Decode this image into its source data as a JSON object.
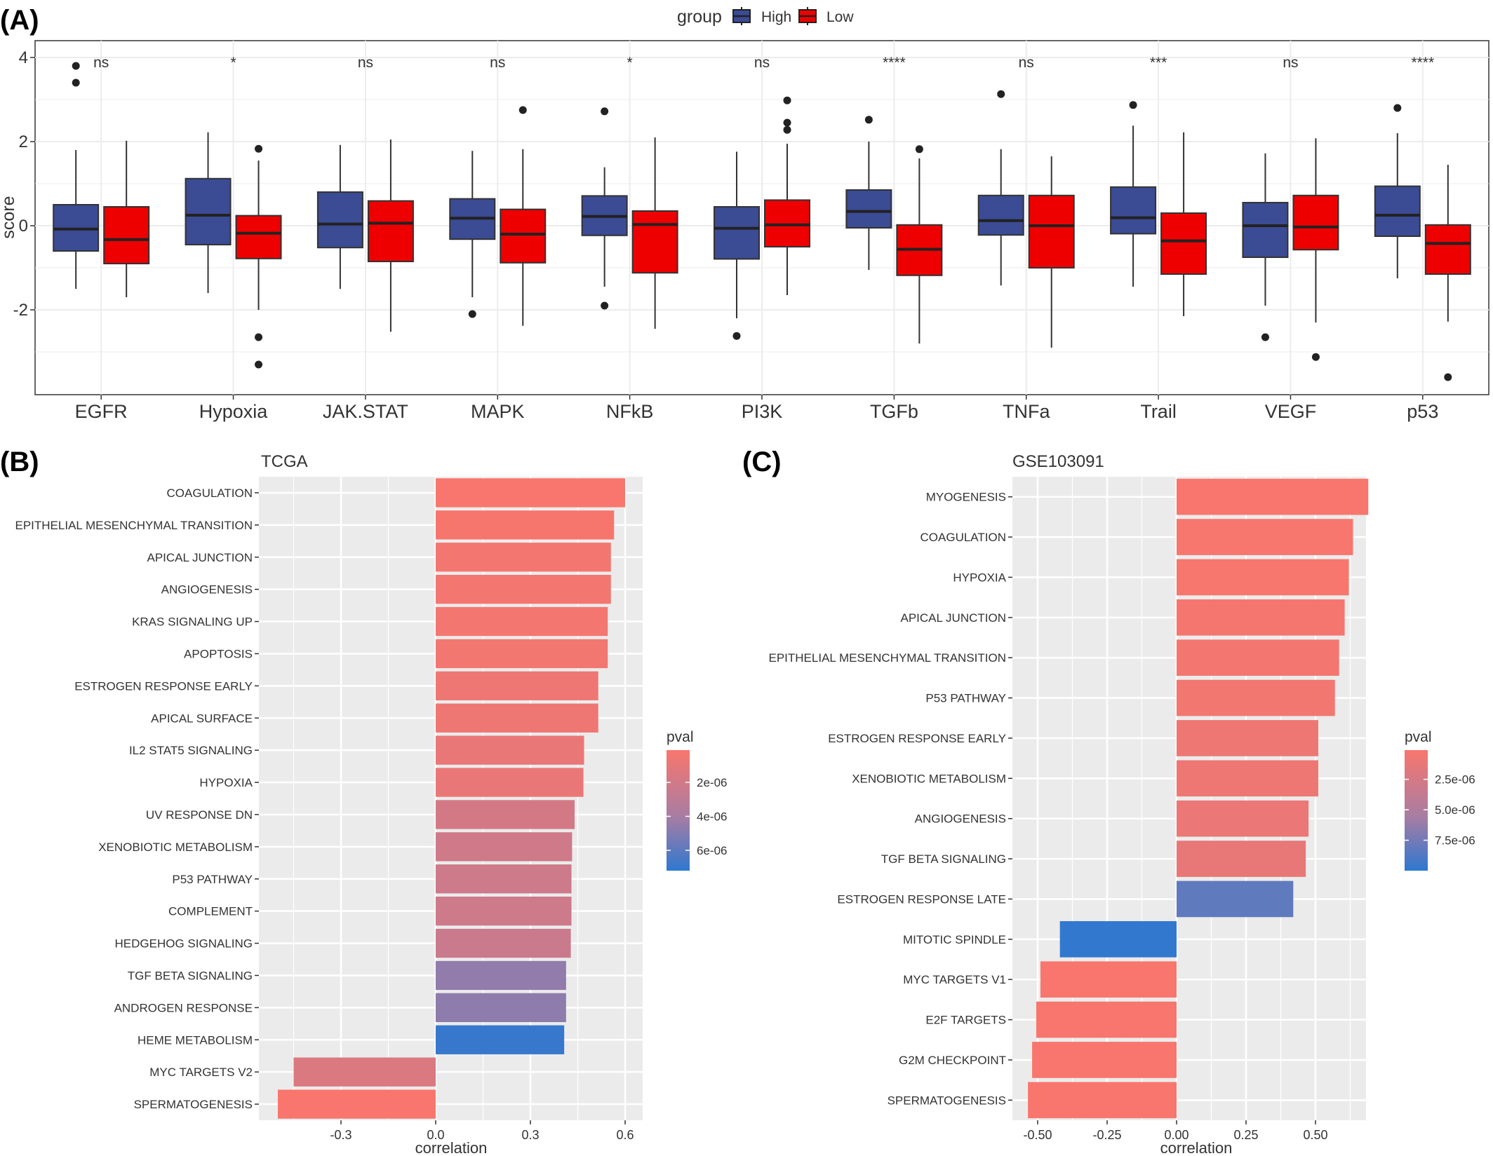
{
  "panels": {
    "a": {
      "label": "(A)"
    },
    "b": {
      "label": "(B)"
    },
    "c": {
      "label": "(C)"
    }
  },
  "chart_data": [
    {
      "type": "box",
      "legend": {
        "title": "group",
        "entries": [
          "High",
          "Low"
        ],
        "position": "top"
      },
      "ylabel": "score",
      "ylim": [
        -4,
        4
      ],
      "yticks": [
        4,
        2,
        0,
        -2
      ],
      "grid": true,
      "categories": [
        "EGFR",
        "Hypoxia",
        "JAK.STAT",
        "MAPK",
        "NFkB",
        "PI3K",
        "TGFb",
        "TNFa",
        "Trail",
        "VEGF",
        "p53"
      ],
      "significance": [
        "ns",
        "*",
        "ns",
        "ns",
        "*",
        "ns",
        "****",
        "ns",
        "***",
        "ns",
        "****"
      ],
      "colors": {
        "High": "#3b4b94",
        "Low": "#ee0000"
      },
      "series": [
        {
          "name": "High",
          "boxes": [
            {
              "wl": -1.5,
              "q1": -0.6,
              "med": -0.08,
              "q3": 0.5,
              "wh": 1.8,
              "out": [
                3.8,
                3.4
              ]
            },
            {
              "wl": -1.6,
              "q1": -0.45,
              "med": 0.25,
              "q3": 1.12,
              "wh": 2.22,
              "out": []
            },
            {
              "wl": -1.5,
              "q1": -0.52,
              "med": 0.04,
              "q3": 0.8,
              "wh": 1.92,
              "out": []
            },
            {
              "wl": -1.7,
              "q1": -0.32,
              "med": 0.18,
              "q3": 0.64,
              "wh": 1.78,
              "out": [
                -2.1
              ]
            },
            {
              "wl": -1.45,
              "q1": -0.23,
              "med": 0.22,
              "q3": 0.71,
              "wh": 1.39,
              "out": [
                2.72,
                -1.9
              ]
            },
            {
              "wl": -2.2,
              "q1": -0.79,
              "med": -0.06,
              "q3": 0.45,
              "wh": 1.76,
              "out": [
                -2.62
              ]
            },
            {
              "wl": -1.05,
              "q1": -0.05,
              "med": 0.34,
              "q3": 0.85,
              "wh": 2.0,
              "out": [
                2.52
              ]
            },
            {
              "wl": -1.42,
              "q1": -0.22,
              "med": 0.12,
              "q3": 0.72,
              "wh": 1.82,
              "out": [
                3.13
              ]
            },
            {
              "wl": -1.45,
              "q1": -0.19,
              "med": 0.19,
              "q3": 0.92,
              "wh": 2.38,
              "out": [
                2.87
              ]
            },
            {
              "wl": -1.9,
              "q1": -0.75,
              "med": 0.0,
              "q3": 0.55,
              "wh": 1.72,
              "out": [
                -2.65
              ]
            },
            {
              "wl": -1.25,
              "q1": -0.25,
              "med": 0.25,
              "q3": 0.94,
              "wh": 2.2,
              "out": [
                2.8
              ]
            }
          ]
        },
        {
          "name": "Low",
          "boxes": [
            {
              "wl": -1.7,
              "q1": -0.9,
              "med": -0.33,
              "q3": 0.45,
              "wh": 2.02,
              "out": []
            },
            {
              "wl": -2.0,
              "q1": -0.78,
              "med": -0.18,
              "q3": 0.24,
              "wh": 1.55,
              "out": [
                1.83,
                -2.65,
                -3.3
              ]
            },
            {
              "wl": -2.52,
              "q1": -0.85,
              "med": 0.06,
              "q3": 0.59,
              "wh": 2.05,
              "out": []
            },
            {
              "wl": -2.38,
              "q1": -0.88,
              "med": -0.2,
              "q3": 0.39,
              "wh": 1.82,
              "out": [
                2.75
              ]
            },
            {
              "wl": -2.45,
              "q1": -1.12,
              "med": 0.03,
              "q3": 0.35,
              "wh": 2.1,
              "out": []
            },
            {
              "wl": -1.65,
              "q1": -0.5,
              "med": 0.02,
              "q3": 0.61,
              "wh": 1.95,
              "out": [
                2.98,
                2.45,
                2.28
              ]
            },
            {
              "wl": -2.8,
              "q1": -1.18,
              "med": -0.56,
              "q3": 0.02,
              "wh": 1.6,
              "out": [
                1.82
              ]
            },
            {
              "wl": -2.9,
              "q1": -1.0,
              "med": 0.0,
              "q3": 0.72,
              "wh": 1.65,
              "out": []
            },
            {
              "wl": -2.15,
              "q1": -1.15,
              "med": -0.36,
              "q3": 0.3,
              "wh": 2.22,
              "out": []
            },
            {
              "wl": -2.3,
              "q1": -0.57,
              "med": -0.03,
              "q3": 0.72,
              "wh": 2.08,
              "out": [
                -3.12
              ]
            },
            {
              "wl": -2.28,
              "q1": -1.15,
              "med": -0.42,
              "q3": 0.02,
              "wh": 1.45,
              "out": [
                -3.6
              ]
            }
          ]
        }
      ]
    },
    {
      "type": "bar",
      "orientation": "horizontal",
      "title": "TCGA",
      "xlabel": "correlation",
      "xlim": [
        -0.56,
        0.65
      ],
      "xticks": [
        -0.3,
        0.0,
        0.3,
        0.6
      ],
      "xtick_labels": [
        "-0.3",
        "0.0",
        "0.3",
        "0.6"
      ],
      "categories": [
        "COAGULATION",
        "EPITHELIAL MESENCHYMAL TRANSITION",
        "APICAL JUNCTION",
        "ANGIOGENESIS",
        "KRAS SIGNALING UP",
        "APOPTOSIS",
        "ESTROGEN RESPONSE EARLY",
        "APICAL SURFACE",
        "IL2 STAT5 SIGNALING",
        "HYPOXIA",
        "UV RESPONSE DN",
        "XENOBIOTIC METABOLISM",
        "P53 PATHWAY",
        "COMPLEMENT",
        "HEDGEHOG SIGNALING",
        "TGF BETA SIGNALING",
        "ANDROGEN RESPONSE",
        "HEME METABOLISM",
        "MYC TARGETS V2",
        "SPERMATOGENESIS"
      ],
      "values": [
        0.6,
        0.565,
        0.555,
        0.555,
        0.545,
        0.545,
        0.515,
        0.515,
        0.47,
        0.468,
        0.44,
        0.432,
        0.43,
        0.43,
        0.428,
        0.413,
        0.413,
        0.407,
        -0.45,
        -0.5
      ],
      "pvals": [
        1e-07,
        2e-07,
        3e-07,
        3e-07,
        3e-07,
        4e-07,
        6e-07,
        6e-07,
        8e-07,
        8e-07,
        1.9e-06,
        2.1e-06,
        2.2e-06,
        2.2e-06,
        2.4e-06,
        4.6e-06,
        4.7e-06,
        7e-06,
        1.5e-06,
        1e-07
      ],
      "legend": {
        "title": "pval",
        "tick_values": [
          2e-06,
          4e-06,
          6e-06
        ],
        "tick_labels": [
          "2e-06",
          "4e-06",
          "6e-06"
        ],
        "range": [
          1e-07,
          7.2e-06
        ],
        "position": "right"
      },
      "grid": true
    },
    {
      "type": "bar",
      "orientation": "horizontal",
      "title": "GSE103091",
      "xlabel": "correlation",
      "xlim": [
        -0.56,
        0.72
      ],
      "xticks": [
        -0.5,
        -0.25,
        0.0,
        0.25,
        0.5
      ],
      "xtick_labels": [
        "-0.50",
        "-0.25",
        "0.00",
        "0.25",
        "0.50"
      ],
      "categories": [
        "MYOGENESIS",
        "COAGULATION",
        "HYPOXIA",
        "APICAL JUNCTION",
        "EPITHELIAL MESENCHYMAL TRANSITION",
        "P53 PATHWAY",
        "ESTROGEN RESPONSE EARLY",
        "XENOBIOTIC METABOLISM",
        "ANGIOGENESIS",
        "TGF BETA SIGNALING",
        "ESTROGEN RESPONSE LATE",
        "MITOTIC SPINDLE",
        "MYC TARGETS V1",
        "E2F TARGETS",
        "G2M CHECKPOINT",
        "SPERMATOGENESIS"
      ],
      "values": [
        0.69,
        0.635,
        0.62,
        0.605,
        0.585,
        0.57,
        0.51,
        0.51,
        0.475,
        0.465,
        0.42,
        -0.42,
        -0.49,
        -0.505,
        -0.52,
        -0.535
      ],
      "pvals": [
        1e-07,
        2e-07,
        2e-07,
        3e-07,
        4e-07,
        5e-07,
        8e-07,
        8e-07,
        1e-06,
        1.2e-06,
        8.2e-06,
        9.9e-06,
        1e-07,
        1e-07,
        1e-07,
        1e-07
      ],
      "legend": {
        "title": "pval",
        "tick_values": [
          2.5e-06,
          5e-06,
          7.5e-06
        ],
        "tick_labels": [
          "2.5e-06",
          "5.0e-06",
          "7.5e-06"
        ],
        "range": [
          1e-07,
          1e-05
        ],
        "position": "right"
      },
      "grid": true
    }
  ]
}
